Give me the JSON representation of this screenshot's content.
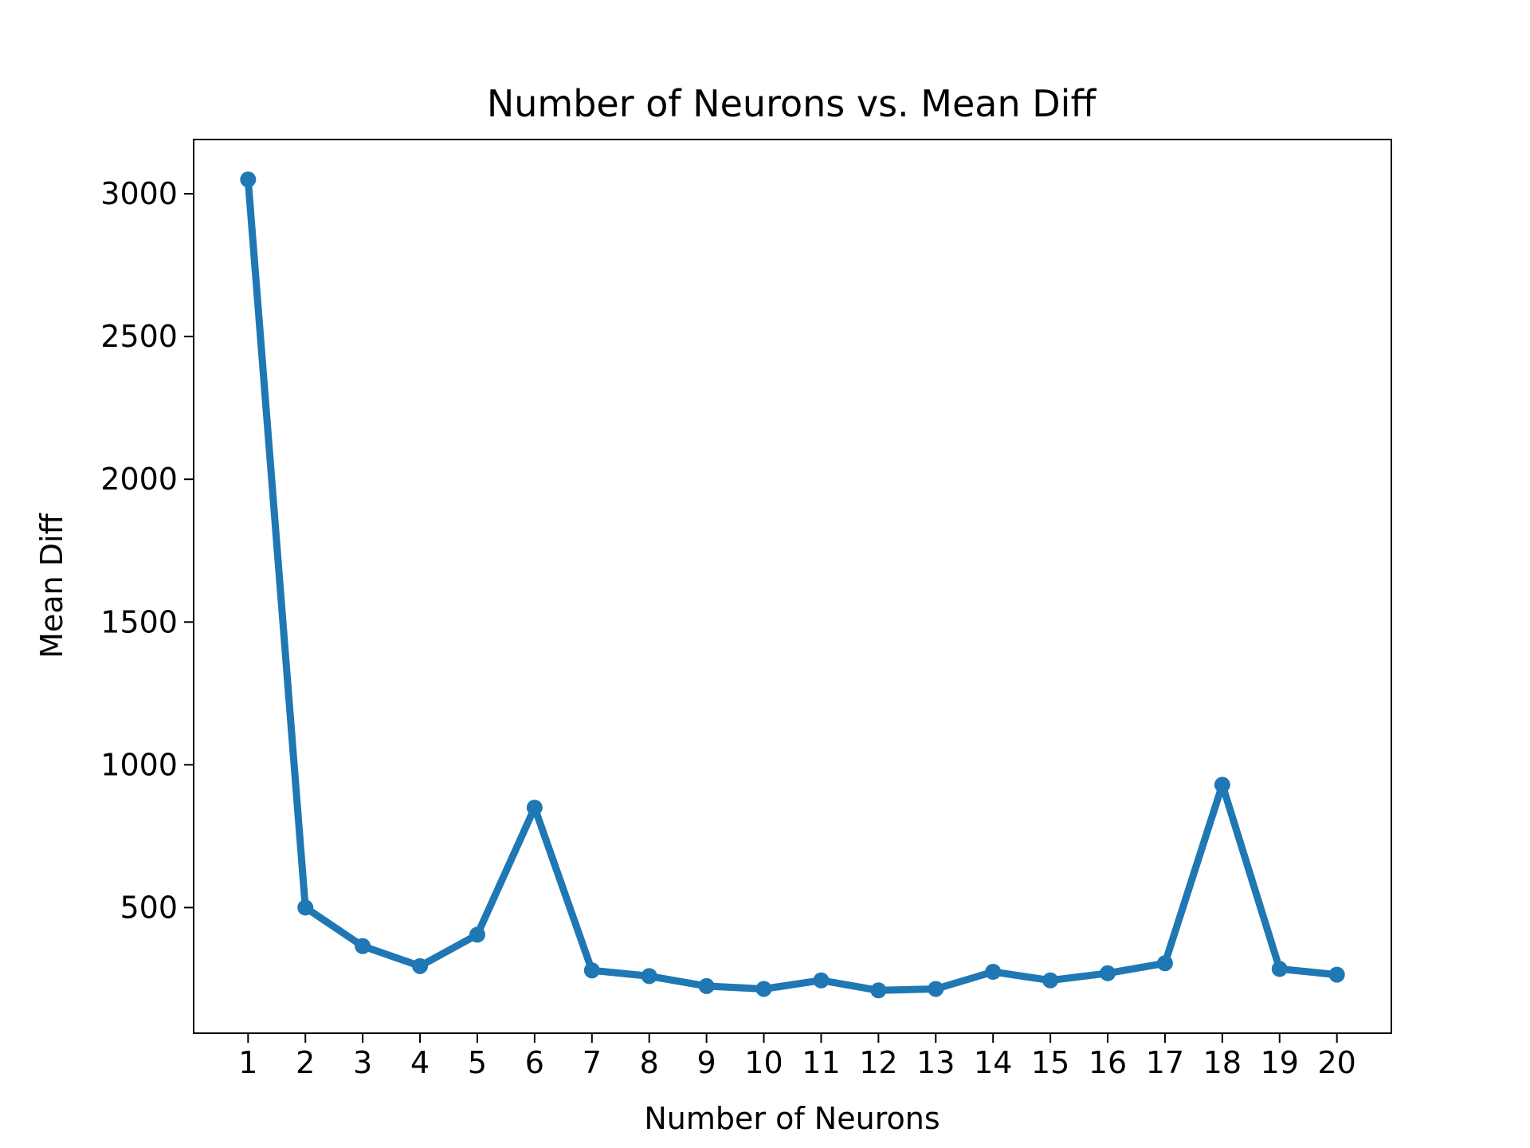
{
  "chart_data": {
    "type": "line",
    "title": "Number of Neurons vs. Mean Diff",
    "xlabel": "Number of Neurons",
    "ylabel": "Mean Diff",
    "x": [
      1,
      2,
      3,
      4,
      5,
      6,
      7,
      8,
      9,
      10,
      11,
      12,
      13,
      14,
      15,
      16,
      17,
      18,
      19,
      20
    ],
    "series": [
      {
        "values": [
          3050,
          500,
          365,
          295,
          405,
          850,
          280,
          260,
          225,
          215,
          245,
          210,
          215,
          275,
          245,
          270,
          305,
          930,
          285,
          265
        ],
        "color": "#1f77b4",
        "marker": "circle"
      }
    ],
    "xticks": [
      "1",
      "2",
      "3",
      "4",
      "5",
      "6",
      "7",
      "8",
      "9",
      "10",
      "11",
      "12",
      "13",
      "14",
      "15",
      "16",
      "17",
      "18",
      "19",
      "20"
    ],
    "yticks": [
      "500",
      "1000",
      "1500",
      "2000",
      "2500",
      "3000"
    ],
    "xlim": [
      0.05,
      20.95
    ],
    "ylim": [
      60,
      3190
    ],
    "grid": false,
    "legend": "none"
  }
}
